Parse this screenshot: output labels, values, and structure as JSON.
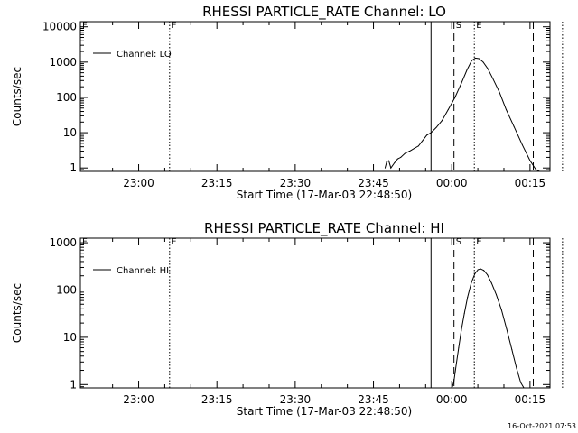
{
  "stamp": "16-Oct-2021 07:53",
  "chart_data": [
    {
      "type": "line",
      "title": "RHESSI PARTICLE_RATE Channel: LO",
      "xlabel": "Start Time (17-Mar-03 22:48:50)",
      "ylabel": "Counts/sec",
      "yscale": "log",
      "xunit": "minutes since 22:48:50",
      "xlim": [
        0,
        90
      ],
      "ylim": [
        0.8,
        14000
      ],
      "xticks": [
        {
          "x": 11.17,
          "label": "23:00"
        },
        {
          "x": 26.17,
          "label": "23:15"
        },
        {
          "x": 41.17,
          "label": "23:30"
        },
        {
          "x": 56.17,
          "label": "23:45"
        },
        {
          "x": 71.17,
          "label": "00:00"
        },
        {
          "x": 86.17,
          "label": "00:15"
        }
      ],
      "yticks": [
        {
          "y": 1,
          "label": "1"
        },
        {
          "y": 10,
          "label": "10"
        },
        {
          "y": 100,
          "label": "100"
        },
        {
          "y": 1000,
          "label": "1000"
        },
        {
          "y": 10000,
          "label": "10000"
        }
      ],
      "legend": {
        "label": "Channel: LO",
        "placement": "top-left"
      },
      "markers": [
        {
          "x": 0,
          "style": "dotted",
          "label": "F"
        },
        {
          "x": 17.1,
          "style": "dotted",
          "label": "F"
        },
        {
          "x": 67.2,
          "style": "solid",
          "label": ""
        },
        {
          "x": 71.6,
          "style": "dashed",
          "label": "S"
        },
        {
          "x": 75.5,
          "style": "dotted",
          "label": "E"
        },
        {
          "x": 86.8,
          "style": "dashed",
          "label": ""
        },
        {
          "x": 92.4,
          "style": "dotted",
          "label": ""
        }
      ],
      "series": [
        {
          "name": "Channel: LO",
          "x": [
            58.4,
            58.7,
            59.1,
            59.5,
            60.2,
            60.8,
            61.4,
            62.2,
            63.1,
            64.0,
            64.8,
            65.6,
            66.4,
            67.2,
            68.2,
            69.3,
            70.5,
            71.8,
            73.0,
            74.1,
            75.0,
            75.7,
            76.4,
            77.2,
            78.1,
            79.1,
            80.3,
            81.6,
            83.1,
            84.7,
            86.2,
            87.3,
            88.0
          ],
          "y": [
            1,
            1.5,
            1.6,
            1,
            1.4,
            1.8,
            2.0,
            2.6,
            3.0,
            3.6,
            4.2,
            6,
            8.5,
            10,
            14,
            22,
            45,
            100,
            250,
            600,
            1100,
            1300,
            1250,
            1000,
            650,
            330,
            140,
            45,
            15,
            4.5,
            1.6,
            0.9,
            0.8
          ]
        }
      ]
    },
    {
      "type": "line",
      "title": "RHESSI PARTICLE_RATE Channel: HI",
      "xlabel": "Start Time (17-Mar-03 22:48:50)",
      "ylabel": "Counts/sec",
      "yscale": "log",
      "xunit": "minutes since 22:48:50",
      "xlim": [
        0,
        90
      ],
      "ylim": [
        0.85,
        1250
      ],
      "xticks": [
        {
          "x": 11.17,
          "label": "23:00"
        },
        {
          "x": 26.17,
          "label": "23:15"
        },
        {
          "x": 41.17,
          "label": "23:30"
        },
        {
          "x": 56.17,
          "label": "23:45"
        },
        {
          "x": 71.17,
          "label": "00:00"
        },
        {
          "x": 86.17,
          "label": "00:15"
        }
      ],
      "yticks": [
        {
          "y": 1,
          "label": "1"
        },
        {
          "y": 10,
          "label": "10"
        },
        {
          "y": 100,
          "label": "100"
        },
        {
          "y": 1000,
          "label": "1000"
        }
      ],
      "legend": {
        "label": "Channel: HI",
        "placement": "top-left"
      },
      "markers": [
        {
          "x": 0,
          "style": "dotted",
          "label": "F"
        },
        {
          "x": 17.1,
          "style": "dotted",
          "label": "F"
        },
        {
          "x": 67.2,
          "style": "solid",
          "label": ""
        },
        {
          "x": 71.6,
          "style": "dashed",
          "label": "S"
        },
        {
          "x": 75.5,
          "style": "dotted",
          "label": "E"
        },
        {
          "x": 86.8,
          "style": "dashed",
          "label": ""
        },
        {
          "x": 92.4,
          "style": "dotted",
          "label": ""
        }
      ],
      "series": [
        {
          "name": "Channel: HI",
          "x": [
            71.3,
            71.6,
            72.0,
            72.5,
            73.0,
            73.6,
            74.2,
            74.9,
            75.6,
            76.2,
            76.7,
            77.3,
            78.0,
            78.8,
            79.7,
            80.7,
            81.7,
            82.7,
            83.6,
            84.4,
            85.0
          ],
          "y": [
            0.9,
            1.2,
            2.5,
            6,
            14,
            32,
            70,
            140,
            220,
            270,
            280,
            260,
            210,
            140,
            80,
            38,
            15,
            5.5,
            2.2,
            1.1,
            0.85
          ]
        }
      ]
    }
  ]
}
